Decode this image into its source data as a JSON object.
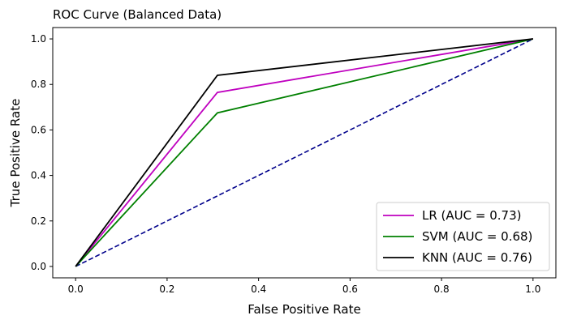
{
  "chart_data": {
    "type": "line",
    "title": "ROC Curve (Balanced Data)",
    "xlabel": "False Positive Rate",
    "ylabel": "True Positive Rate",
    "xlim": [
      -0.05,
      1.05
    ],
    "ylim": [
      -0.05,
      1.05
    ],
    "xticks": [
      0.0,
      0.2,
      0.4,
      0.6,
      0.8,
      1.0
    ],
    "yticks": [
      0.0,
      0.2,
      0.4,
      0.6,
      0.8,
      1.0
    ],
    "xtick_labels": [
      "0.0",
      "0.2",
      "0.4",
      "0.6",
      "0.8",
      "1.0"
    ],
    "ytick_labels": [
      "0.0",
      "0.2",
      "0.4",
      "0.6",
      "0.8",
      "1.0"
    ],
    "grid": false,
    "legend_position": "lower-right",
    "series": [
      {
        "name": "LR (AUC = 0.73)",
        "color": "#bf00bf",
        "dash": "solid",
        "x": [
          0.0,
          0.31,
          1.0
        ],
        "y": [
          0.0,
          0.765,
          1.0
        ]
      },
      {
        "name": "SVM (AUC = 0.68)",
        "color": "#008000",
        "dash": "solid",
        "x": [
          0.0,
          0.31,
          1.0
        ],
        "y": [
          0.0,
          0.675,
          1.0
        ]
      },
      {
        "name": "KNN (AUC = 0.76)",
        "color": "#000000",
        "dash": "solid",
        "x": [
          0.0,
          0.31,
          1.0
        ],
        "y": [
          0.0,
          0.84,
          1.0
        ]
      }
    ],
    "reference_line": {
      "color": "#00008b",
      "dash": "dashed",
      "x": [
        0.0,
        1.0
      ],
      "y": [
        0.0,
        1.0
      ]
    }
  }
}
